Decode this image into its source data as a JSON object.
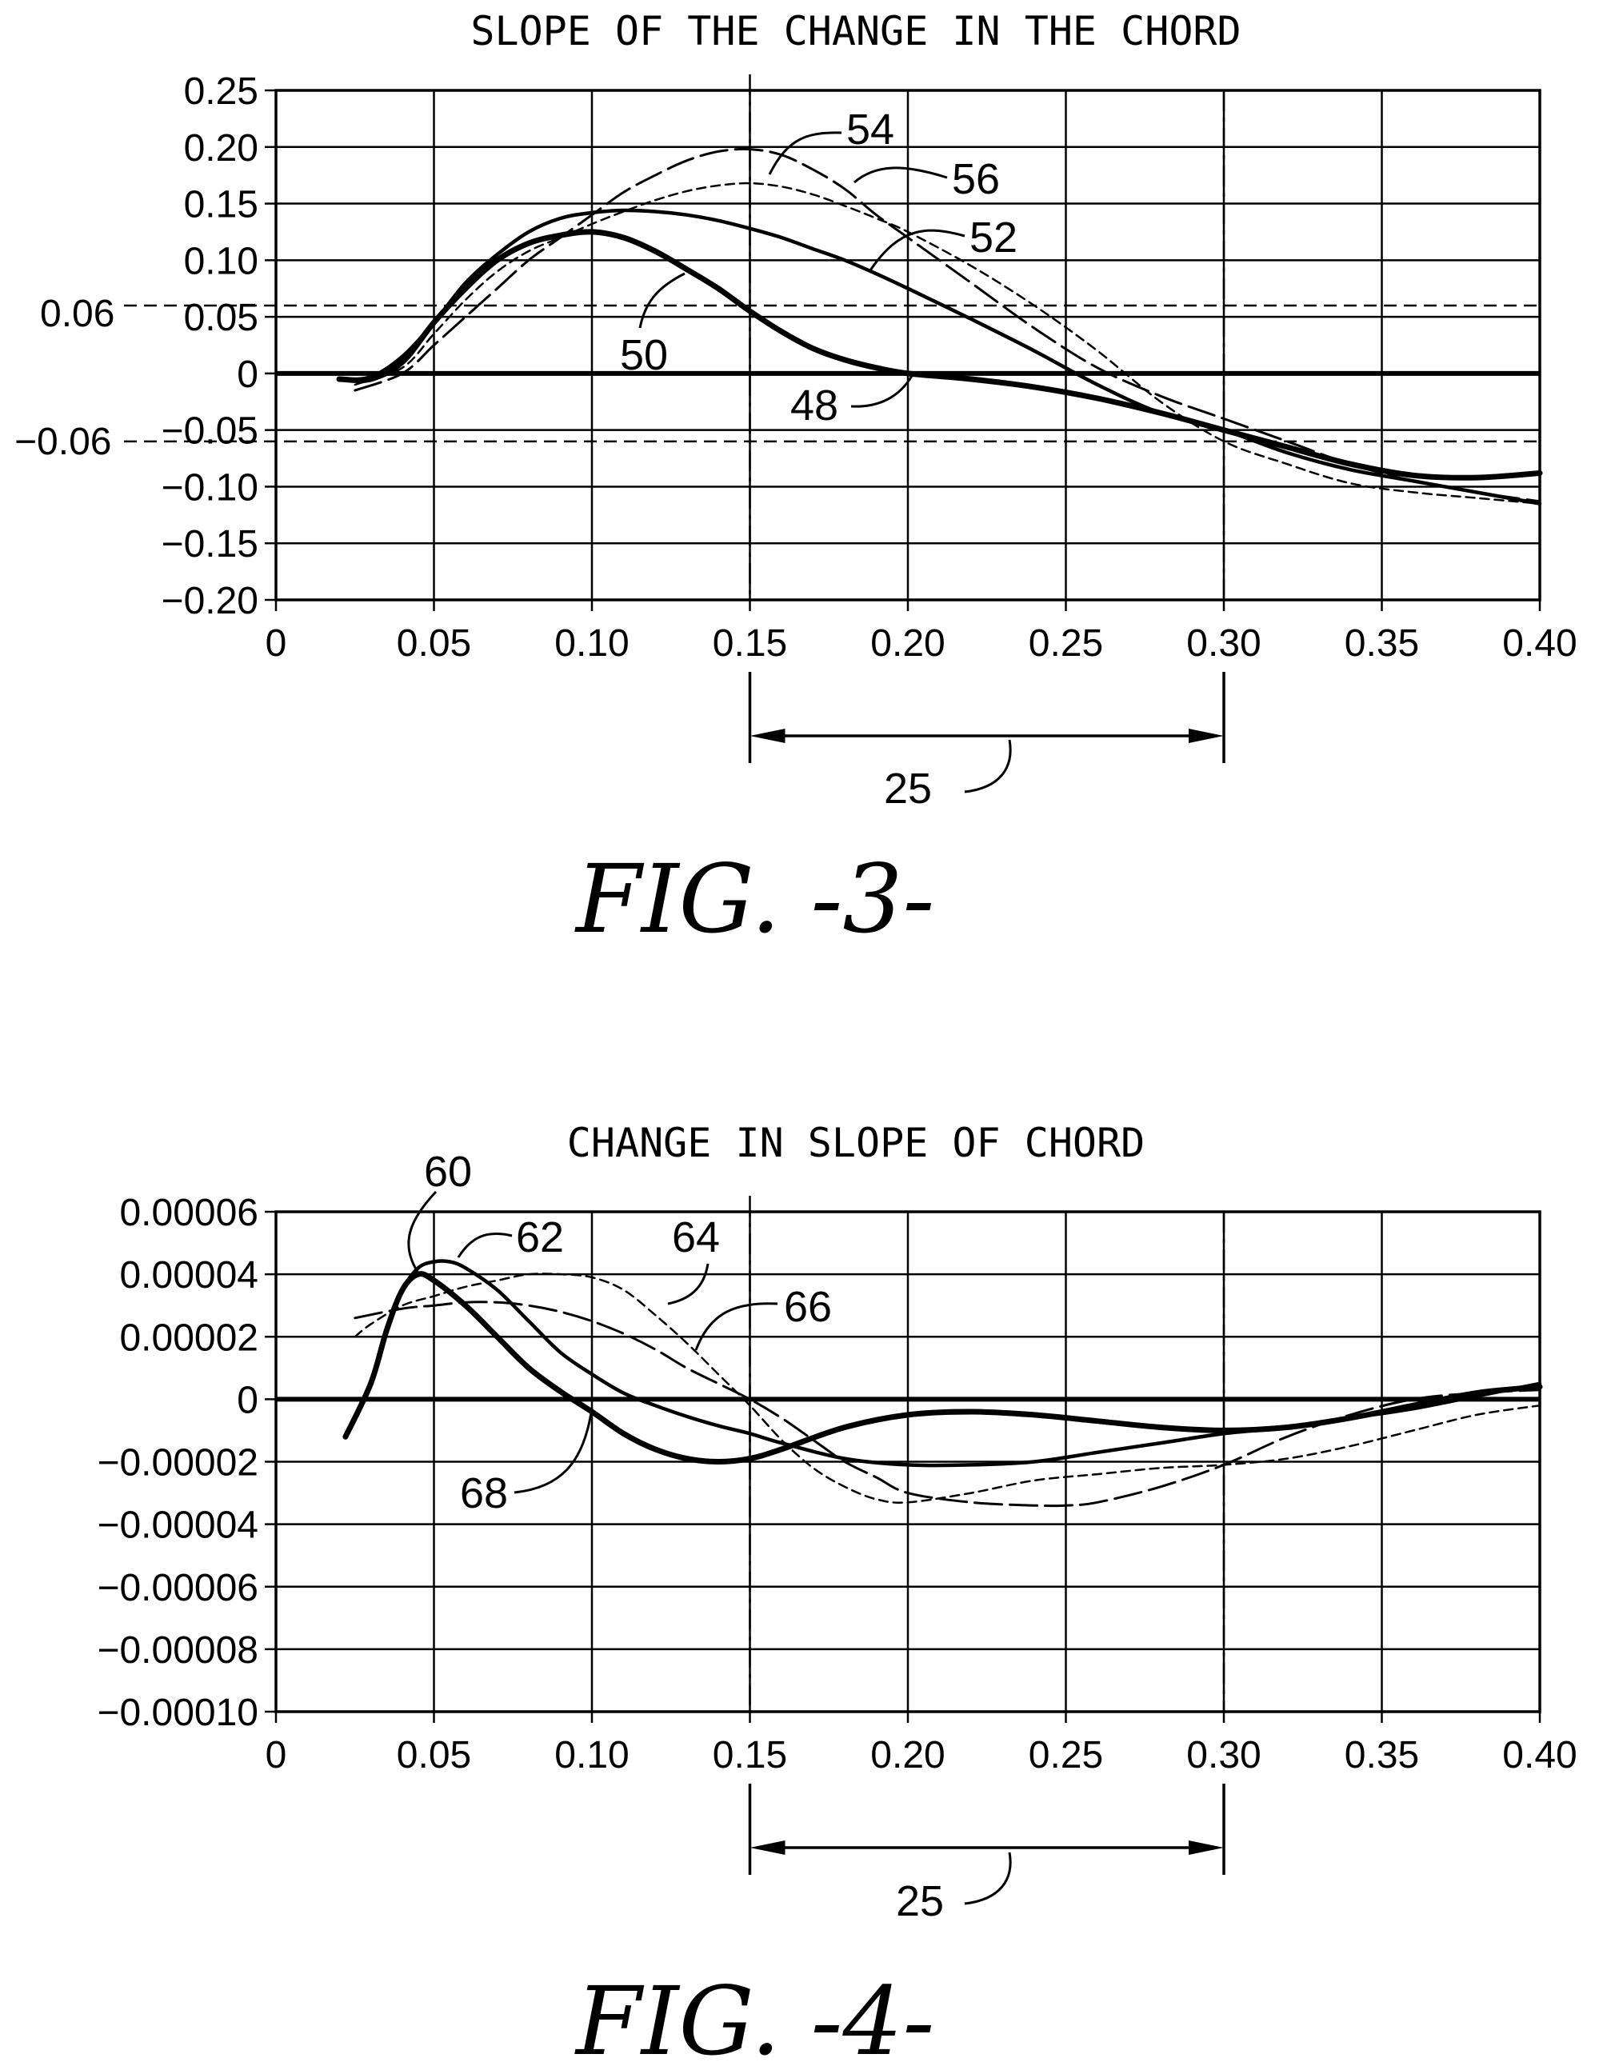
{
  "chart_data": [
    {
      "type": "line",
      "title": "SLOPE OF THE CHANGE IN THE CHORD",
      "caption": "FIG. -3-",
      "xlim": [
        0,
        0.4
      ],
      "ylim": [
        -0.2,
        0.25
      ],
      "x_tick_labels": [
        "0",
        "0.05",
        "0.10",
        "0.15",
        "0.20",
        "0.25",
        "0.30",
        "0.35",
        "0.40"
      ],
      "y_tick_labels": [
        "0.25",
        "0.20",
        "0.15",
        "0.10",
        "0.05",
        "0",
        "−0.05",
        "−0.10",
        "−0.15",
        "−0.20"
      ],
      "y_tick_values": [
        0.25,
        0.2,
        0.15,
        0.1,
        0.05,
        0,
        -0.05,
        -0.1,
        -0.15,
        -0.2
      ],
      "grid": true,
      "threshold_lines": [
        {
          "label": "0.06",
          "value": 0.06
        },
        {
          "label": "−0.06",
          "value": -0.06
        }
      ],
      "region": {
        "start": 0.15,
        "end": 0.3,
        "label": "25"
      },
      "series": [
        {
          "name": "50",
          "style": "thick",
          "x": [
            0.02,
            0.03,
            0.04,
            0.05,
            0.06,
            0.07,
            0.08,
            0.09,
            0.1,
            0.11,
            0.12,
            0.13,
            0.14,
            0.15,
            0.16,
            0.17,
            0.18,
            0.19,
            0.2,
            0.22,
            0.24,
            0.26,
            0.28,
            0.3,
            0.32,
            0.34,
            0.36,
            0.38,
            0.4
          ],
          "y": [
            -0.005,
            -0.005,
            0.01,
            0.045,
            0.075,
            0.1,
            0.115,
            0.122,
            0.125,
            0.12,
            0.108,
            0.092,
            0.075,
            0.055,
            0.037,
            0.022,
            0.012,
            0.005,
            0.0,
            -0.005,
            -0.012,
            -0.022,
            -0.035,
            -0.05,
            -0.065,
            -0.08,
            -0.09,
            -0.092,
            -0.088
          ]
        },
        {
          "name": "52",
          "style": "medium",
          "x": [
            0.02,
            0.03,
            0.04,
            0.05,
            0.06,
            0.07,
            0.08,
            0.09,
            0.1,
            0.11,
            0.12,
            0.13,
            0.14,
            0.15,
            0.16,
            0.17,
            0.18,
            0.19,
            0.2,
            0.22,
            0.24,
            0.26,
            0.28,
            0.3,
            0.32,
            0.34,
            0.36,
            0.38,
            0.4
          ],
          "y": [
            -0.005,
            -0.003,
            0.015,
            0.045,
            0.08,
            0.105,
            0.125,
            0.137,
            0.142,
            0.144,
            0.143,
            0.14,
            0.135,
            0.128,
            0.12,
            0.11,
            0.1,
            0.088,
            0.075,
            0.048,
            0.02,
            -0.01,
            -0.035,
            -0.05,
            -0.07,
            -0.085,
            -0.095,
            -0.105,
            -0.115
          ]
        },
        {
          "name": "54",
          "style": "long-dash",
          "x": [
            0.025,
            0.04,
            0.05,
            0.06,
            0.07,
            0.08,
            0.09,
            0.1,
            0.11,
            0.12,
            0.13,
            0.14,
            0.15,
            0.16,
            0.17,
            0.18,
            0.19,
            0.2,
            0.22,
            0.24,
            0.26,
            0.28,
            0.3,
            0.32,
            0.34,
            0.36,
            0.38,
            0.4
          ],
          "y": [
            -0.015,
            0.0,
            0.025,
            0.05,
            0.075,
            0.1,
            0.12,
            0.14,
            0.16,
            0.175,
            0.188,
            0.196,
            0.198,
            0.193,
            0.18,
            0.163,
            0.14,
            0.12,
            0.08,
            0.04,
            0.005,
            -0.02,
            -0.04,
            -0.06,
            -0.08,
            -0.095,
            -0.105,
            -0.113
          ]
        },
        {
          "name": "56",
          "style": "short-dash",
          "x": [
            0.025,
            0.04,
            0.05,
            0.06,
            0.07,
            0.08,
            0.09,
            0.1,
            0.11,
            0.12,
            0.13,
            0.14,
            0.15,
            0.16,
            0.17,
            0.18,
            0.19,
            0.2,
            0.22,
            0.24,
            0.26,
            0.28,
            0.3,
            0.32,
            0.34,
            0.36,
            0.38,
            0.4
          ],
          "y": [
            -0.01,
            0.005,
            0.035,
            0.065,
            0.09,
            0.108,
            0.12,
            0.132,
            0.143,
            0.153,
            0.161,
            0.166,
            0.168,
            0.165,
            0.158,
            0.148,
            0.137,
            0.125,
            0.095,
            0.06,
            0.02,
            -0.025,
            -0.06,
            -0.08,
            -0.097,
            -0.105,
            -0.11,
            -0.115
          ]
        }
      ],
      "callouts": [
        "48",
        "50",
        "52",
        "54",
        "56"
      ]
    },
    {
      "type": "line",
      "title": "CHANGE IN SLOPE OF CHORD",
      "caption": "FIG. -4-",
      "xlim": [
        0,
        0.4
      ],
      "ylim": [
        -0.0001,
        6e-05
      ],
      "x_tick_labels": [
        "0",
        "0.05",
        "0.10",
        "0.15",
        "0.20",
        "0.25",
        "0.30",
        "0.35",
        "0.40"
      ],
      "y_tick_labels": [
        "0.00006",
        "0.00004",
        "0.00002",
        "0",
        "−0.00002",
        "−0.00004",
        "−0.00006",
        "−0.00008",
        "−0.00010"
      ],
      "y_tick_values": [
        6e-05,
        4e-05,
        2e-05,
        0,
        -2e-05,
        -4e-05,
        -6e-05,
        -8e-05,
        -0.0001
      ],
      "grid": true,
      "region": {
        "start": 0.15,
        "end": 0.3,
        "label": "25"
      },
      "series": [
        {
          "name": "60",
          "style": "thick",
          "x": [
            0.022,
            0.03,
            0.035,
            0.04,
            0.045,
            0.05,
            0.06,
            0.07,
            0.08,
            0.09,
            0.1,
            0.11,
            0.12,
            0.13,
            0.14,
            0.15,
            0.16,
            0.18,
            0.2,
            0.22,
            0.24,
            0.26,
            0.28,
            0.3,
            0.32,
            0.34,
            0.36,
            0.38,
            0.4
          ],
          "y": [
            -1.2e-05,
            5e-06,
            2.2e-05,
            3.5e-05,
            4e-05,
            3.8e-05,
            3e-05,
            2e-05,
            1e-05,
            2.5e-06,
            -4e-06,
            -1.1e-05,
            -1.6e-05,
            -1.9e-05,
            -2e-05,
            -1.9e-05,
            -1.6e-05,
            -9e-06,
            -5e-06,
            -4e-06,
            -5e-06,
            -7e-06,
            -9e-06,
            -1e-05,
            -9e-06,
            -6e-06,
            -2e-06,
            2e-06,
            4e-06
          ]
        },
        {
          "name": "62",
          "style": "medium",
          "x": [
            0.022,
            0.03,
            0.035,
            0.04,
            0.045,
            0.05,
            0.055,
            0.06,
            0.07,
            0.08,
            0.09,
            0.1,
            0.11,
            0.12,
            0.13,
            0.14,
            0.15,
            0.16,
            0.18,
            0.2,
            0.22,
            0.24,
            0.26,
            0.28,
            0.3,
            0.32,
            0.34,
            0.36,
            0.38,
            0.4
          ],
          "y": [
            -1.2e-05,
            5e-06,
            2.2e-05,
            3.5e-05,
            4.2e-05,
            4.4e-05,
            4.4e-05,
            4.2e-05,
            3.5e-05,
            2.5e-05,
            1.5e-05,
            8e-06,
            2e-06,
            -2e-06,
            -5.5e-06,
            -8.5e-06,
            -1.1e-05,
            -1.4e-05,
            -1.9e-05,
            -2.1e-05,
            -2.1e-05,
            -2e-05,
            -1.7e-05,
            -1.4e-05,
            -1.1e-05,
            -9e-06,
            -6e-06,
            -3e-06,
            1e-06,
            5e-06
          ]
        },
        {
          "name": "64",
          "style": "short-dash",
          "x": [
            0.025,
            0.03,
            0.04,
            0.05,
            0.06,
            0.07,
            0.08,
            0.09,
            0.1,
            0.11,
            0.12,
            0.13,
            0.14,
            0.15,
            0.16,
            0.17,
            0.18,
            0.19,
            0.2,
            0.22,
            0.24,
            0.26,
            0.28,
            0.3,
            0.32,
            0.34,
            0.36,
            0.38,
            0.4
          ],
          "y": [
            2e-05,
            2.4e-05,
            3e-05,
            3.3e-05,
            3.6e-05,
            3.8e-05,
            4e-05,
            4e-05,
            3.9e-05,
            3.5e-05,
            2.7e-05,
            1.8e-05,
            8e-06,
            -2e-06,
            -1.3e-05,
            -2.2e-05,
            -2.8e-05,
            -3.2e-05,
            -3.3e-05,
            -3e-05,
            -2.6e-05,
            -2.4e-05,
            -2.2e-05,
            -2.1e-05,
            -1.9e-05,
            -1.5e-05,
            -1e-05,
            -5e-06,
            -2e-06
          ]
        },
        {
          "name": "66",
          "style": "long-dash",
          "x": [
            0.025,
            0.04,
            0.05,
            0.06,
            0.07,
            0.08,
            0.09,
            0.1,
            0.11,
            0.12,
            0.13,
            0.14,
            0.15,
            0.16,
            0.17,
            0.18,
            0.19,
            0.2,
            0.22,
            0.24,
            0.25,
            0.26,
            0.28,
            0.3,
            0.32,
            0.34,
            0.36,
            0.38,
            0.4
          ],
          "y": [
            2.6e-05,
            2.9e-05,
            3e-05,
            3.1e-05,
            3.1e-05,
            3e-05,
            2.8e-05,
            2.5e-05,
            2.1e-05,
            1.6e-05,
            1e-05,
            5e-06,
            0.0,
            -6e-06,
            -1.3e-05,
            -2e-05,
            -2.5e-05,
            -3e-05,
            -3.3e-05,
            -3.4e-05,
            -3.4e-05,
            -3.3e-05,
            -2.8e-05,
            -2.1e-05,
            -1.2e-05,
            -5e-06,
            0.0,
            2e-06,
            3e-06
          ]
        }
      ],
      "callouts": [
        "60",
        "62",
        "64",
        "66",
        "68"
      ]
    }
  ]
}
